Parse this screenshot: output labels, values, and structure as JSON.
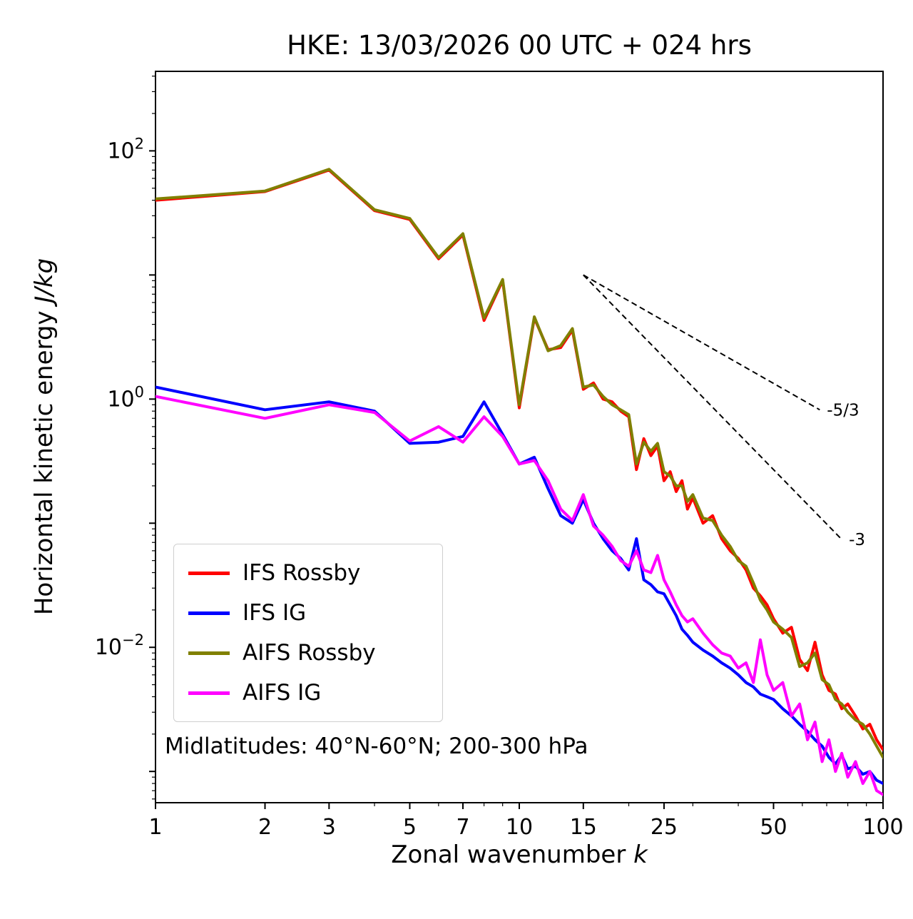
{
  "chart_data": {
    "type": "line",
    "title": "HKE: 13/03/2026 00 UTC + 024 hrs",
    "xlabel": "Zonal wavenumber k",
    "ylabel": "Horizontal kinetic energy J/kg",
    "xlabel_parts": {
      "text": "Zonal wavenumber ",
      "math": "k"
    },
    "ylabel_parts": {
      "text": "Horizontal kinetic energy ",
      "math": "J/kg"
    },
    "xscale": "log",
    "yscale": "log",
    "xlim": [
      1,
      100
    ],
    "ylim": [
      0.00056,
      437
    ],
    "grid": false,
    "annotation": "Midlatitudes: 40°N-60°N; 200-300 hPa",
    "x_ticks": {
      "major": [
        1,
        2,
        3,
        5,
        7,
        10,
        15,
        25,
        50,
        100
      ],
      "labels": [
        "1",
        "2",
        "3",
        "5",
        "7",
        "10",
        "15",
        "25",
        "50",
        "100"
      ],
      "minor": [
        4,
        6,
        8,
        9,
        20,
        30,
        40,
        60,
        70,
        80,
        90
      ]
    },
    "y_ticks": {
      "labeled_exponents": [
        2,
        0,
        -2
      ],
      "unlabeled_exponents": [
        1,
        -1,
        -3
      ]
    },
    "legend": {
      "position": "lower left",
      "entries": [
        {
          "name": "IFS Rossby",
          "color": "#ff0000"
        },
        {
          "name": "IFS IG",
          "color": "#0000ff"
        },
        {
          "name": "AIFS Rossby",
          "color": "#808000"
        },
        {
          "name": "AIFS IG",
          "color": "#ff00ff"
        }
      ]
    },
    "reference_lines": [
      {
        "label": "-5/3",
        "slope": "-5/3",
        "x": [
          15,
          67
        ],
        "y": [
          10,
          0.82
        ]
      },
      {
        "label": "-3",
        "slope": "-3",
        "x": [
          15,
          77
        ],
        "y": [
          10,
          0.074
        ]
      }
    ],
    "x": [
      1,
      2,
      3,
      4,
      5,
      6,
      7,
      8,
      9,
      10,
      11,
      12,
      13,
      14,
      15,
      16,
      17,
      18,
      19,
      20,
      21,
      22,
      23,
      24,
      25,
      26,
      27,
      28,
      29,
      30,
      32,
      34,
      36,
      38,
      40,
      42,
      44,
      46,
      48,
      50,
      53,
      56,
      59,
      62,
      65,
      68,
      71,
      74,
      77,
      80,
      84,
      88,
      92,
      96,
      100
    ],
    "series": [
      {
        "name": "IFS Rossby",
        "color": "#ff0000",
        "values": [
          40,
          47,
          70,
          33,
          28,
          13.5,
          21,
          4.3,
          9.0,
          0.85,
          4.5,
          2.5,
          2.6,
          3.6,
          1.2,
          1.35,
          1.0,
          0.95,
          0.8,
          0.72,
          0.27,
          0.48,
          0.35,
          0.42,
          0.22,
          0.26,
          0.18,
          0.22,
          0.13,
          0.16,
          0.1,
          0.115,
          0.075,
          0.06,
          0.052,
          0.042,
          0.03,
          0.026,
          0.022,
          0.017,
          0.013,
          0.0145,
          0.008,
          0.0065,
          0.011,
          0.006,
          0.0045,
          0.0042,
          0.0032,
          0.0035,
          0.0028,
          0.0022,
          0.0024,
          0.0018,
          0.0015
        ]
      },
      {
        "name": "IFS IG",
        "color": "#0000ff",
        "values": [
          1.25,
          0.82,
          0.95,
          0.8,
          0.44,
          0.45,
          0.5,
          0.95,
          0.52,
          0.3,
          0.34,
          0.19,
          0.115,
          0.1,
          0.155,
          0.1,
          0.075,
          0.06,
          0.052,
          0.042,
          0.075,
          0.035,
          0.032,
          0.028,
          0.027,
          0.022,
          0.018,
          0.014,
          0.0125,
          0.011,
          0.0095,
          0.0085,
          0.0075,
          0.0068,
          0.006,
          0.0052,
          0.0048,
          0.0042,
          0.004,
          0.0038,
          0.0032,
          0.0028,
          0.0024,
          0.0021,
          0.0018,
          0.0016,
          0.0013,
          0.00115,
          0.00135,
          0.00105,
          0.0011,
          0.00095,
          0.001,
          0.00085,
          0.0008
        ]
      },
      {
        "name": "AIFS Rossby",
        "color": "#808000",
        "values": [
          41,
          47.5,
          71,
          33.5,
          28.5,
          13.8,
          21.5,
          4.5,
          9.2,
          0.9,
          4.6,
          2.45,
          2.7,
          3.7,
          1.25,
          1.3,
          1.05,
          0.9,
          0.82,
          0.75,
          0.3,
          0.45,
          0.38,
          0.44,
          0.26,
          0.24,
          0.2,
          0.2,
          0.15,
          0.17,
          0.11,
          0.105,
          0.08,
          0.065,
          0.05,
          0.045,
          0.033,
          0.024,
          0.02,
          0.016,
          0.014,
          0.012,
          0.007,
          0.0075,
          0.009,
          0.0055,
          0.005,
          0.0038,
          0.0035,
          0.003,
          0.0026,
          0.0024,
          0.002,
          0.0016,
          0.0013
        ]
      },
      {
        "name": "AIFS IG",
        "color": "#ff00ff",
        "values": [
          1.05,
          0.7,
          0.9,
          0.78,
          0.46,
          0.6,
          0.45,
          0.72,
          0.5,
          0.3,
          0.32,
          0.22,
          0.13,
          0.105,
          0.17,
          0.095,
          0.08,
          0.065,
          0.05,
          0.045,
          0.06,
          0.042,
          0.04,
          0.055,
          0.035,
          0.028,
          0.022,
          0.018,
          0.016,
          0.017,
          0.013,
          0.0105,
          0.009,
          0.0085,
          0.0068,
          0.0075,
          0.0052,
          0.0115,
          0.006,
          0.0045,
          0.0052,
          0.0028,
          0.0035,
          0.0018,
          0.0025,
          0.0012,
          0.0018,
          0.001,
          0.0014,
          0.0009,
          0.0012,
          0.0008,
          0.001,
          0.0007,
          0.00065
        ]
      }
    ]
  }
}
